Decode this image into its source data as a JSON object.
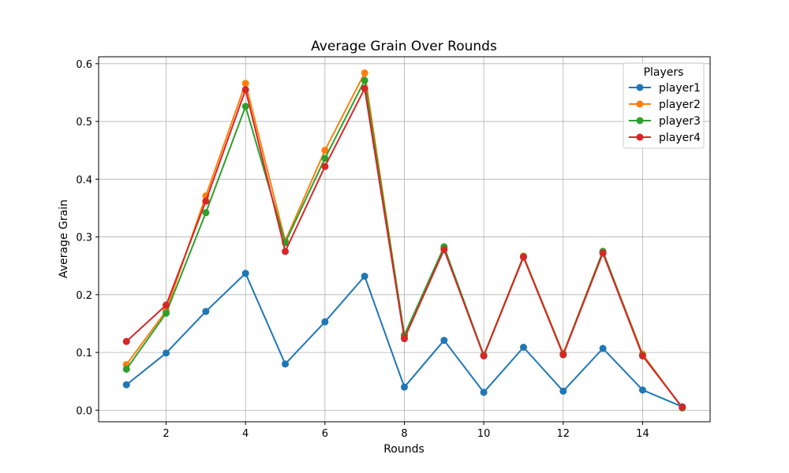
{
  "chart_data": {
    "type": "line",
    "title": "Average Grain Over Rounds",
    "xlabel": "Rounds",
    "ylabel": "Average Grain",
    "xlim": [
      0.3,
      15.7
    ],
    "ylim": [
      -0.02,
      0.612
    ],
    "xticks": [
      2,
      4,
      6,
      8,
      10,
      12,
      14
    ],
    "yticks": [
      0.0,
      0.1,
      0.2,
      0.3,
      0.4,
      0.5,
      0.6
    ],
    "ytick_labels": [
      "0.0",
      "0.1",
      "0.2",
      "0.3",
      "0.4",
      "0.5",
      "0.6"
    ],
    "grid": true,
    "legend": {
      "title": "Players",
      "placement": "top-right"
    },
    "x": [
      1,
      2,
      3,
      4,
      5,
      6,
      7,
      8,
      9,
      10,
      11,
      12,
      13,
      14,
      15
    ],
    "series": [
      {
        "name": "player1",
        "color": "#1f77b4",
        "values": [
          0.044,
          0.099,
          0.171,
          0.237,
          0.08,
          0.153,
          0.232,
          0.04,
          0.121,
          0.031,
          0.109,
          0.033,
          0.107,
          0.035,
          0.006
        ]
      },
      {
        "name": "player2",
        "color": "#ff7f0e",
        "values": [
          0.079,
          0.172,
          0.371,
          0.566,
          0.293,
          0.45,
          0.584,
          0.128,
          0.28,
          0.095,
          0.267,
          0.098,
          0.275,
          0.097,
          0.004
        ]
      },
      {
        "name": "player3",
        "color": "#2ca02c",
        "values": [
          0.071,
          0.168,
          0.342,
          0.526,
          0.29,
          0.436,
          0.571,
          0.13,
          0.283,
          0.095,
          0.266,
          0.097,
          0.275,
          0.095,
          0.004
        ]
      },
      {
        "name": "player4",
        "color": "#d62728",
        "values": [
          0.119,
          0.182,
          0.362,
          0.555,
          0.275,
          0.422,
          0.557,
          0.124,
          0.278,
          0.094,
          0.265,
          0.096,
          0.272,
          0.094,
          0.005
        ]
      }
    ]
  }
}
